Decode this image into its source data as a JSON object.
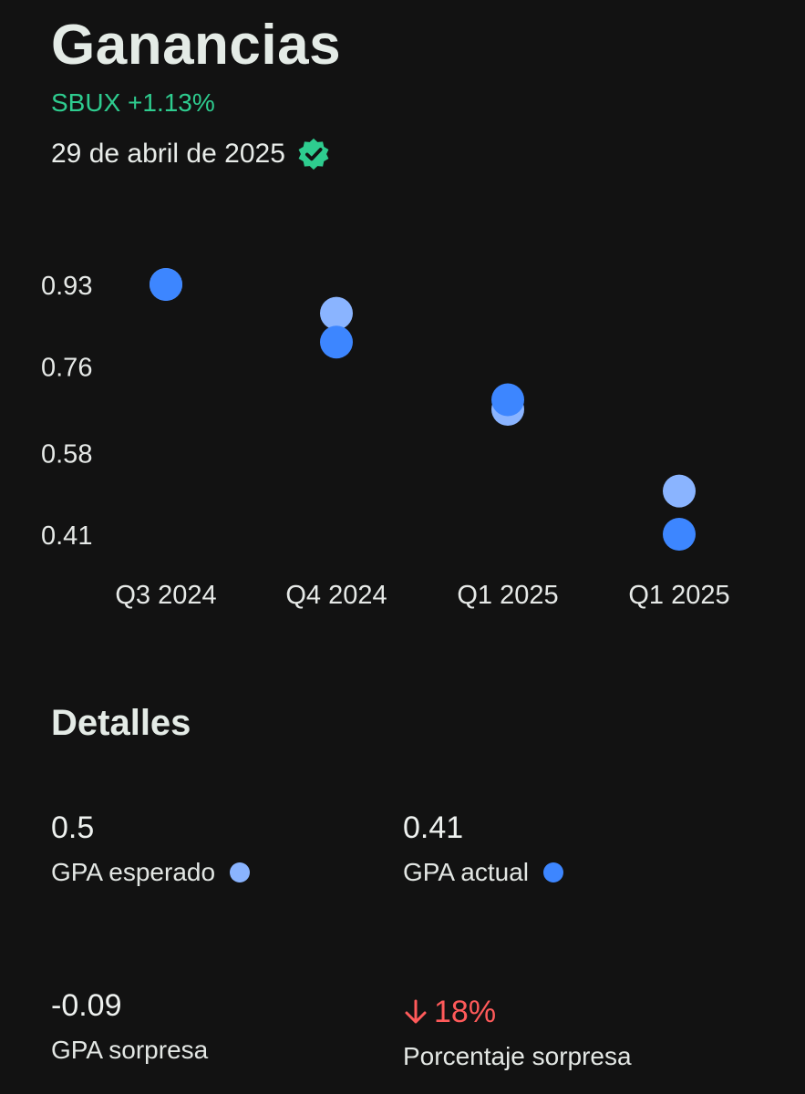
{
  "header": {
    "title": "Ganancias",
    "ticker": "SBUX +1.13%",
    "date": "29 de abril de 2025",
    "verified_icon": "verified-badge-icon"
  },
  "colors": {
    "background": "#121212",
    "positive": "#2ecc8f",
    "negative": "#ff5a5a",
    "expected": "#8ab4ff",
    "actual": "#3d86ff"
  },
  "chart_data": {
    "type": "scatter",
    "categories": [
      "Q3 2024",
      "Q4 2024",
      "Q1 2025",
      "Q1 2025"
    ],
    "y_ticks": [
      "0.93",
      "0.76",
      "0.58",
      "0.41"
    ],
    "ylim": [
      0.41,
      0.93
    ],
    "grid": false,
    "series": [
      {
        "name": "GPA esperado",
        "color": "#8ab4ff",
        "values": [
          0.93,
          0.87,
          0.67,
          0.5
        ]
      },
      {
        "name": "GPA actual",
        "color": "#3d86ff",
        "values": [
          0.93,
          0.81,
          0.69,
          0.41
        ]
      }
    ]
  },
  "details": {
    "title": "Detalles",
    "expected_value": "0.5",
    "expected_label": "GPA esperado",
    "actual_value": "0.41",
    "actual_label": "GPA actual",
    "surprise_value": "-0.09",
    "surprise_label": "GPA sorpresa",
    "surprise_pct_value": "18%",
    "surprise_pct_label": "Porcentaje sorpresa"
  }
}
